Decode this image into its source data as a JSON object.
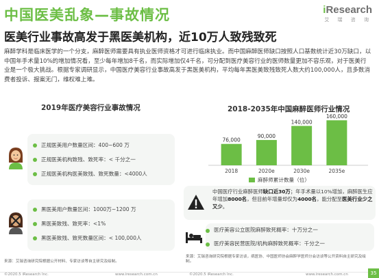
{
  "header": {
    "title": "中国医美乱象—事故情况",
    "subtitle": "医美行业事故高发于黑医美机构，近10万人致残致死",
    "logo_text_i": "i",
    "logo_text_rest": "Research",
    "logo_cn": "艾 瑞 咨 询"
  },
  "intro": "麻醉学科是临床医学的一个分支，麻醉医师需要具有执业医师资格才可进行临床执业。而中国麻醉医师缺口按照人口基数统计近30万缺口，以中国年手术量10%的增加情况看，至少每年增加8千名，而实际增加仅4千名，可分配到医疗美容行业的医师数量更加不容乐观，对于医美行业是一个极大挑战。根据专家调研显示，中国医疗美容行业事故高发于黑医美机构，平均每年黑医美致残致死人数大约100,000人，且多数消费者投诉、报案无门，维权难上难。",
  "left_panel": {
    "title": "2019年医疗美容行业事故情况",
    "legal": [
      "正规医美用户数量区间：400~600 万",
      "正规医美机构致残、致死率：< 千分之一",
      "正规医美机构医美致残、致死数量：<4000人"
    ],
    "illegal": [
      "黑医美用户数量区间：1000万~1200 万",
      "黑医美致残、致死率：<1%",
      "黑医美致残、致死数量区间：< 100,000人"
    ],
    "person1_icon": "woman-icon",
    "person2_icon": "woman-crossed-icon"
  },
  "right_panel": {
    "title": "2018-2035年中国麻醉医师行业情况",
    "legend": "麻醉师累计数量（位）",
    "warning_text_1": "中国医疗行业麻醉医师",
    "warning_bold_1": "缺口近30万",
    "warning_text_2": "；年手术量以10%增加，麻醉医生应年增加",
    "warning_bold_2": "8000名",
    "warning_text_3": "，但目前年增量却仅为",
    "warning_bold_3": "4000名",
    "warning_text_4": "，能分配至",
    "warning_bold_4": "医美行业少之又少",
    "warning_text_5": "。",
    "stats": [
      "医疗美容公立医院麻醉致死概率：十万分之一",
      "医疗美容民营医院/机构麻醉致死概率：千分之一"
    ]
  },
  "chart_data": {
    "type": "bar",
    "categories": [
      "2018",
      "2020e",
      "2030e",
      "2035e"
    ],
    "values": [
      76000,
      90000,
      140000,
      160000
    ],
    "labels": [
      "76,000",
      "90,000",
      "140,000",
      "160,000"
    ],
    "series": [
      {
        "name": "麻醉师累计数量（位）",
        "values": [
          76000,
          90000,
          140000,
          160000
        ]
      }
    ],
    "title": "2018-2035年中国麻醉医师行业情况",
    "ylim": [
      0,
      170000
    ],
    "color": "#6cbe45"
  },
  "sources": {
    "left": "来源：艾瑞咨询研究院根据公开材料、专家访谈等自主研究及绘制。",
    "right": "来源：艾瑞咨询研究院根据专家访谈，病医协、中国医师协会麻醉学医师分会访谈等公开资料自主研究及绘制。"
  },
  "footer": {
    "copy_left": "©2020.5 iResearch Inc.",
    "url_left": "www.iresearch.com.cn",
    "copy_right": "©2020.5 iResearch Inc.",
    "url_right": "www.iresearch.com.cn",
    "page": "35"
  },
  "colors": {
    "accent": "#6cbe45",
    "panel_bg": "#f4f6f4"
  }
}
